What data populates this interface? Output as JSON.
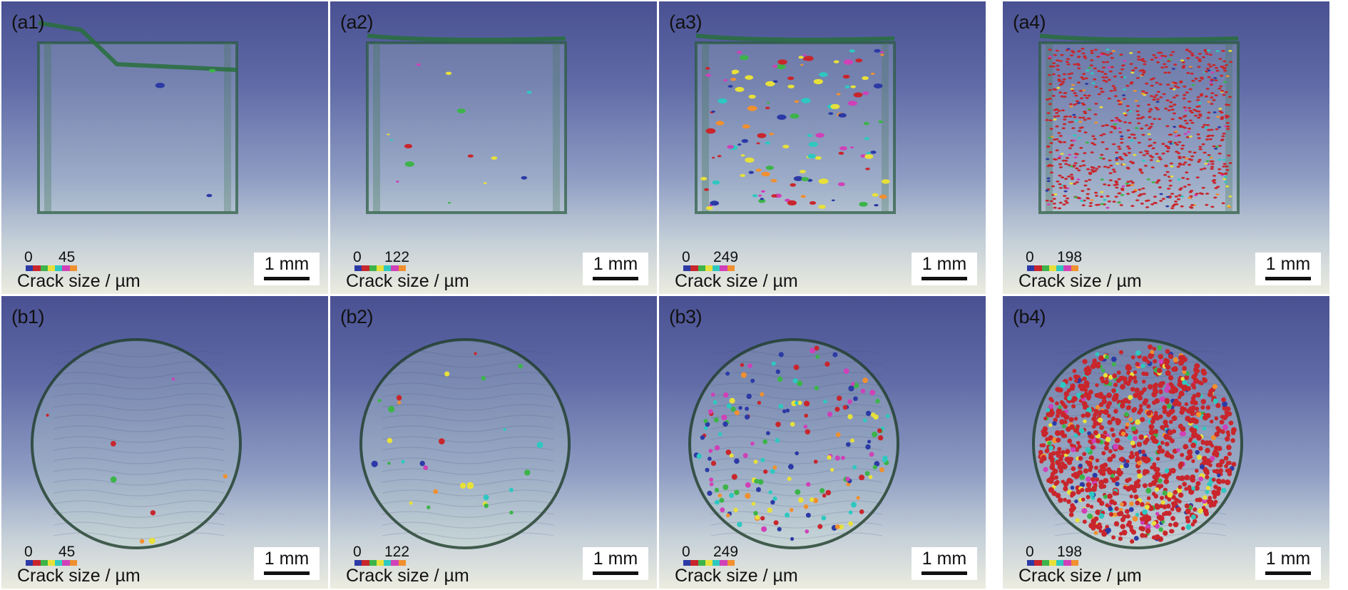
{
  "colorbar_title": "Crack size / µm",
  "scale_label": "1 mm",
  "colorbar_colors": [
    "#2c3aa6",
    "#c8262c",
    "#3cb44a",
    "#e8e03a",
    "#2ec8c0",
    "#d040b8",
    "#f09030"
  ],
  "panels": [
    {
      "id": "a1",
      "label": "(a1)",
      "max": "45"
    },
    {
      "id": "a2",
      "label": "(a2)",
      "max": "122"
    },
    {
      "id": "a3",
      "label": "(a3)",
      "max": "249"
    },
    {
      "id": "a4",
      "label": "(a4)",
      "max": "198"
    },
    {
      "id": "b1",
      "label": "(b1)",
      "max": "45"
    },
    {
      "id": "b2",
      "label": "(b2)",
      "max": "122"
    },
    {
      "id": "b3",
      "label": "(b3)",
      "max": "249"
    },
    {
      "id": "b4",
      "label": "(b4)",
      "max": "198"
    }
  ],
  "colorbar_min": "0"
}
